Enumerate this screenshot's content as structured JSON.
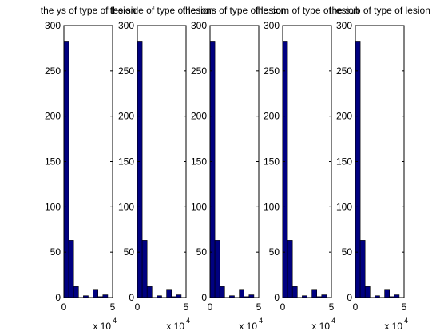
{
  "chart_data": [
    {
      "type": "bar",
      "title": "the ys of type of lesion",
      "x_exponent_label": "x 10",
      "x_exponent_power": "4",
      "xlim": [
        0,
        5
      ],
      "ylim": [
        0,
        300
      ],
      "xticks": [
        "0",
        "5"
      ],
      "yticks": [
        "0",
        "50",
        "100",
        "150",
        "200",
        "250",
        "300"
      ],
      "bin_width": 0.5,
      "bins_x": [
        0,
        0.5,
        1,
        1.5,
        2,
        2.5,
        3,
        3.5,
        4,
        4.5
      ],
      "values": [
        282,
        63,
        12,
        0,
        2,
        0,
        9,
        1,
        3,
        0
      ],
      "bar_color": "#000080"
    },
    {
      "type": "bar",
      "title": "the side of type of lesion",
      "x_exponent_label": "x 10",
      "x_exponent_power": "4",
      "xlim": [
        0,
        5
      ],
      "ylim": [
        0,
        300
      ],
      "xticks": [
        "0",
        "5"
      ],
      "yticks": [
        "0",
        "50",
        "100",
        "150",
        "200",
        "250",
        "300"
      ],
      "bin_width": 0.5,
      "bins_x": [
        0,
        0.5,
        1,
        1.5,
        2,
        2.5,
        3,
        3.5,
        4,
        4.5
      ],
      "values": [
        282,
        63,
        12,
        0,
        2,
        0,
        9,
        1,
        3,
        0
      ],
      "bar_color": "#000080"
    },
    {
      "type": "bar",
      "title": "the ions of type of lesion",
      "x_exponent_label": "x 10",
      "x_exponent_power": "4",
      "xlim": [
        0,
        5
      ],
      "ylim": [
        0,
        300
      ],
      "xticks": [
        "0",
        "5"
      ],
      "yticks": [
        "0",
        "50",
        "100",
        "150",
        "200",
        "250",
        "300"
      ],
      "bin_width": 0.5,
      "bins_x": [
        0,
        0.5,
        1,
        1.5,
        2,
        2.5,
        3,
        3.5,
        4,
        4.5
      ],
      "values": [
        282,
        63,
        12,
        0,
        2,
        0,
        9,
        1,
        3,
        0
      ],
      "bar_color": "#000080"
    },
    {
      "type": "bar",
      "title": "the com of type of lesion",
      "x_exponent_label": "x 10",
      "x_exponent_power": "4",
      "xlim": [
        0,
        5
      ],
      "ylim": [
        0,
        300
      ],
      "xticks": [
        "0",
        "5"
      ],
      "yticks": [
        "0",
        "50",
        "100",
        "150",
        "200",
        "250",
        "300"
      ],
      "bin_width": 0.5,
      "bins_x": [
        0,
        0.5,
        1,
        1.5,
        2,
        2.5,
        3,
        3.5,
        4,
        4.5
      ],
      "values": [
        282,
        63,
        12,
        0,
        2,
        0,
        9,
        1,
        3,
        0
      ],
      "bar_color": "#000080"
    },
    {
      "type": "bar",
      "title": "the sub of type of lesion",
      "x_exponent_label": "x 10",
      "x_exponent_power": "4",
      "xlim": [
        0,
        5
      ],
      "ylim": [
        0,
        300
      ],
      "xticks": [
        "0",
        "5"
      ],
      "yticks": [
        "0",
        "50",
        "100",
        "150",
        "200",
        "250",
        "300"
      ],
      "bin_width": 0.5,
      "bins_x": [
        0,
        0.5,
        1,
        1.5,
        2,
        2.5,
        3,
        3.5,
        4,
        4.5
      ],
      "values": [
        282,
        63,
        12,
        0,
        2,
        0,
        9,
        1,
        3,
        0
      ],
      "bar_color": "#000080"
    }
  ]
}
